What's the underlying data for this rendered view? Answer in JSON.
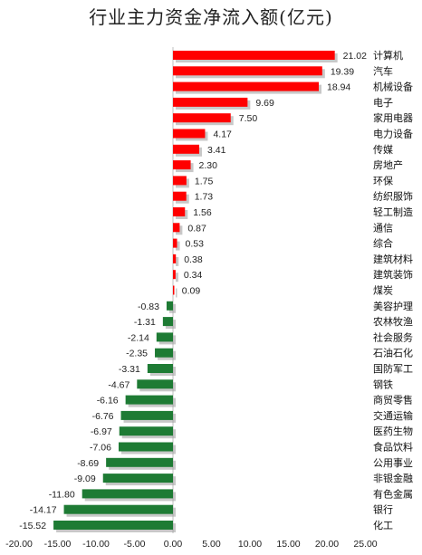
{
  "chart_data": {
    "type": "bar",
    "orientation": "horizontal",
    "title": "行业主力资金净流入额(亿元)",
    "categories": [
      "计算机",
      "汽车",
      "机械设备",
      "电子",
      "家用电器",
      "电力设备",
      "传媒",
      "房地产",
      "环保",
      "纺织服饰",
      "轻工制造",
      "通信",
      "综合",
      "建筑材料",
      "建筑装饰",
      "煤炭",
      "美容护理",
      "农林牧渔",
      "社会服务",
      "石油石化",
      "国防军工",
      "钢铁",
      "商贸零售",
      "交通运输",
      "医药生物",
      "食品饮料",
      "公用事业",
      "非银金融",
      "有色金属",
      "银行",
      "化工"
    ],
    "values": [
      21.02,
      19.39,
      18.94,
      9.69,
      7.5,
      4.17,
      3.41,
      2.3,
      1.75,
      1.73,
      1.56,
      0.87,
      0.53,
      0.38,
      0.34,
      0.09,
      -0.83,
      -1.31,
      -2.14,
      -2.35,
      -3.31,
      -4.67,
      -6.16,
      -6.76,
      -6.97,
      -7.06,
      -8.69,
      -9.09,
      -11.8,
      -14.17,
      -15.52
    ],
    "value_labels": [
      "21.02",
      "19.39",
      "18.94",
      "9.69",
      "7.50",
      "4.17",
      "3.41",
      "2.30",
      "1.75",
      "1.73",
      "1.56",
      "0.87",
      "0.53",
      "0.38",
      "0.34",
      "0.09",
      "-0.83",
      "-1.31",
      "-2.14",
      "-2.35",
      "-3.31",
      "-4.67",
      "-6.16",
      "-6.76",
      "-6.97",
      "-7.06",
      "-8.69",
      "-9.09",
      "-11.80",
      "-14.17",
      "-15.52"
    ],
    "xlim": [
      -20,
      25
    ],
    "xticks": [
      -20,
      -15,
      -10,
      -5,
      0,
      5,
      10,
      15,
      20,
      25
    ],
    "xtick_labels": [
      "-20.00",
      "-15.00",
      "-10.00",
      "-5.00",
      "0.00",
      "5.00",
      "10.00",
      "15.00",
      "20.00",
      "25.00"
    ],
    "grid": false,
    "legend": "none",
    "colors": {
      "positive": "#ff0000",
      "negative": "#1e7b34",
      "shadow": "#9a9a9a",
      "zero_line": "#bfbfbf"
    }
  }
}
